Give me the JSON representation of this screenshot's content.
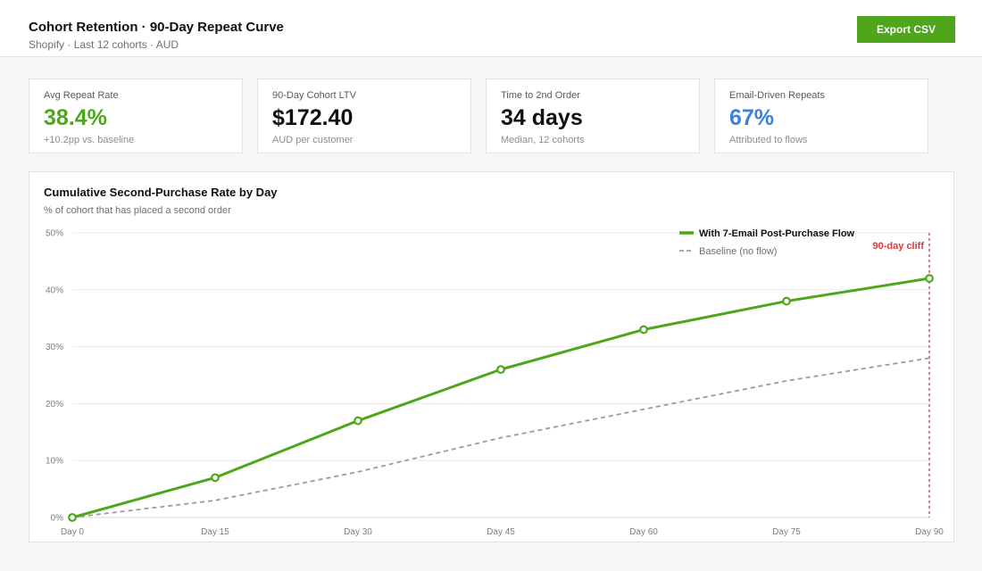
{
  "header": {
    "title": "Cohort Retention · 90-Day Repeat Curve",
    "subtitle": "Shopify · Last 12 cohorts · AUD",
    "export_label": "Export CSV"
  },
  "kpis": [
    {
      "label": "Avg Repeat Rate",
      "value": "38.4%",
      "note": "+10.2pp vs. baseline",
      "color": "#4fa61b"
    },
    {
      "label": "90-Day Cohort LTV",
      "value": "$172.40",
      "note": "AUD per customer",
      "color": "#111111"
    },
    {
      "label": "Time to 2nd Order",
      "value": "34 days",
      "note": "Median, 12 cohorts",
      "color": "#111111"
    },
    {
      "label": "Email-Driven Repeats",
      "value": "67%",
      "note": "Attributed to flows",
      "color": "#3b82e0"
    }
  ],
  "chart": {
    "title": "Cumulative Second-Purchase Rate by Day",
    "subtitle": "% of cohort that has placed a second order"
  },
  "chart_data": {
    "type": "line",
    "categories": [
      "Day 0",
      "Day 15",
      "Day 30",
      "Day 45",
      "Day 60",
      "Day 75",
      "Day 90"
    ],
    "y_ticks": [
      "0%",
      "10%",
      "20%",
      "30%",
      "40%",
      "50%"
    ],
    "ylim": [
      0,
      50
    ],
    "grid": true,
    "legend_position": "top-right",
    "series": [
      {
        "name": "With 7-Email Post-Purchase Flow",
        "values": [
          0,
          7,
          17,
          26,
          33,
          38,
          42
        ],
        "color": "#4fa61b",
        "style": "solid",
        "markers": true
      },
      {
        "name": "Baseline (no flow)",
        "values": [
          0,
          3,
          8,
          14,
          19,
          24,
          28
        ],
        "color": "#9a9aa3",
        "style": "dashed",
        "markers": false
      }
    ],
    "annotation": {
      "label": "90-day cliff",
      "at": "Day 90",
      "color": "#d63b3b"
    }
  }
}
